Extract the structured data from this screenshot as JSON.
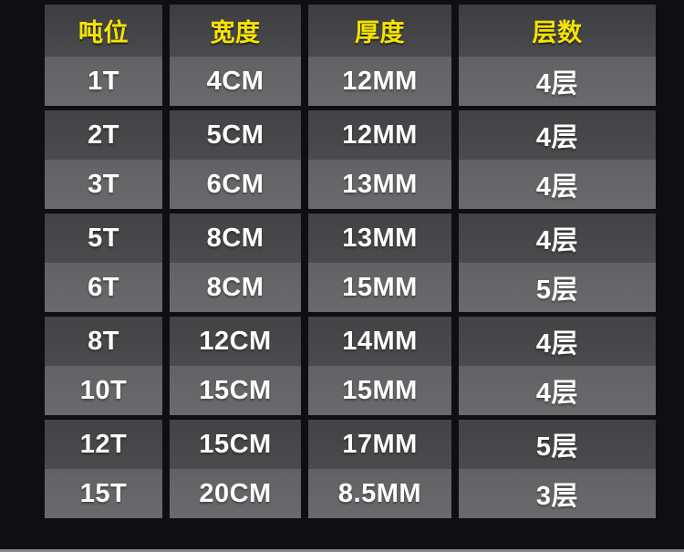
{
  "chart_data": {
    "type": "table",
    "title": "",
    "columns": [
      "吨位",
      "宽度",
      "厚度",
      "层数"
    ],
    "rows": [
      [
        "1T",
        "4CM",
        "12MM",
        "4层"
      ],
      [
        "2T",
        "5CM",
        "12MM",
        "4层"
      ],
      [
        "3T",
        "6CM",
        "13MM",
        "4层"
      ],
      [
        "5T",
        "8CM",
        "13MM",
        "4层"
      ],
      [
        "6T",
        "8CM",
        "15MM",
        "5层"
      ],
      [
        "8T",
        "12CM",
        "14MM",
        "4层"
      ],
      [
        "10T",
        "15CM",
        "15MM",
        "4层"
      ],
      [
        "12T",
        "15CM",
        "17MM",
        "5层"
      ],
      [
        "15T",
        "20CM",
        "8.5MM",
        "3层"
      ]
    ],
    "row_groups": [
      [
        0
      ],
      [
        1,
        2
      ],
      [
        3,
        4
      ],
      [
        5,
        6
      ],
      [
        7,
        8
      ]
    ],
    "legend_position": "none",
    "grid": false
  },
  "colors": {
    "page_background": "#0f0f12",
    "header_cell": "#434346",
    "dark_cell": "#47474a",
    "light_cell": "#666669",
    "header_text": "#f6e300",
    "cell_text": "#ffffff",
    "bottom_line": "#85878a"
  }
}
